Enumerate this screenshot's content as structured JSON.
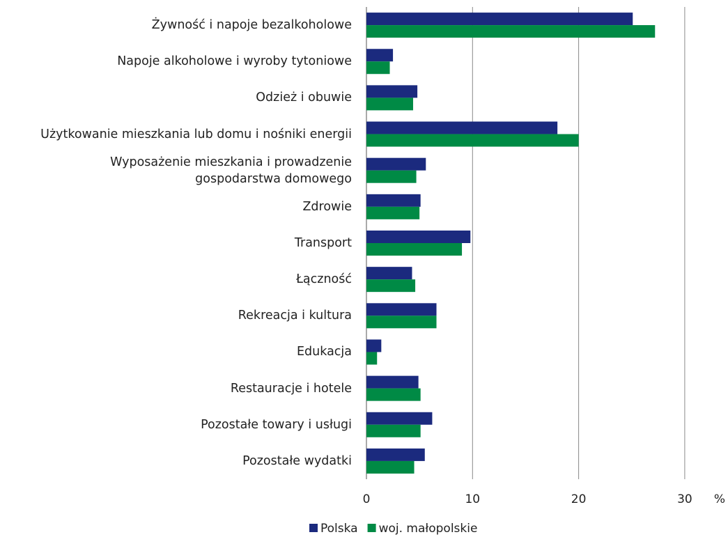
{
  "chart_data": {
    "type": "bar",
    "orientation": "horizontal",
    "categories": [
      "Żywność i napoje bezalkoholowe",
      "Napoje alkoholowe i wyroby tytoniowe",
      "Odzież i obuwie",
      "Użytkowanie mieszkania lub domu i nośniki energii",
      "Wyposażenie mieszkania i prowadzenie\ngospodarstwa domowego",
      "Zdrowie",
      "Transport",
      "Łączność",
      "Rekreacja i kultura",
      "Edukacja",
      "Restauracje i hotele",
      "Pozostałe towary i usługi",
      "Pozostałe wydatki"
    ],
    "series": [
      {
        "name": "Polska",
        "color": "#1b2a7e",
        "values": [
          25.1,
          2.5,
          4.8,
          18.0,
          5.6,
          5.1,
          9.8,
          4.3,
          6.6,
          1.4,
          4.9,
          6.2,
          5.5
        ]
      },
      {
        "name": "woj. małopolskie",
        "color": "#008a45",
        "values": [
          27.2,
          2.2,
          4.4,
          20.0,
          4.7,
          5.0,
          9.0,
          4.6,
          6.6,
          1.0,
          5.1,
          5.1,
          4.5
        ]
      }
    ],
    "xlim": [
      0,
      31
    ],
    "xticks": [
      0,
      10,
      20,
      30
    ],
    "xlabel": "%",
    "grid": true,
    "legend": "bottom"
  }
}
